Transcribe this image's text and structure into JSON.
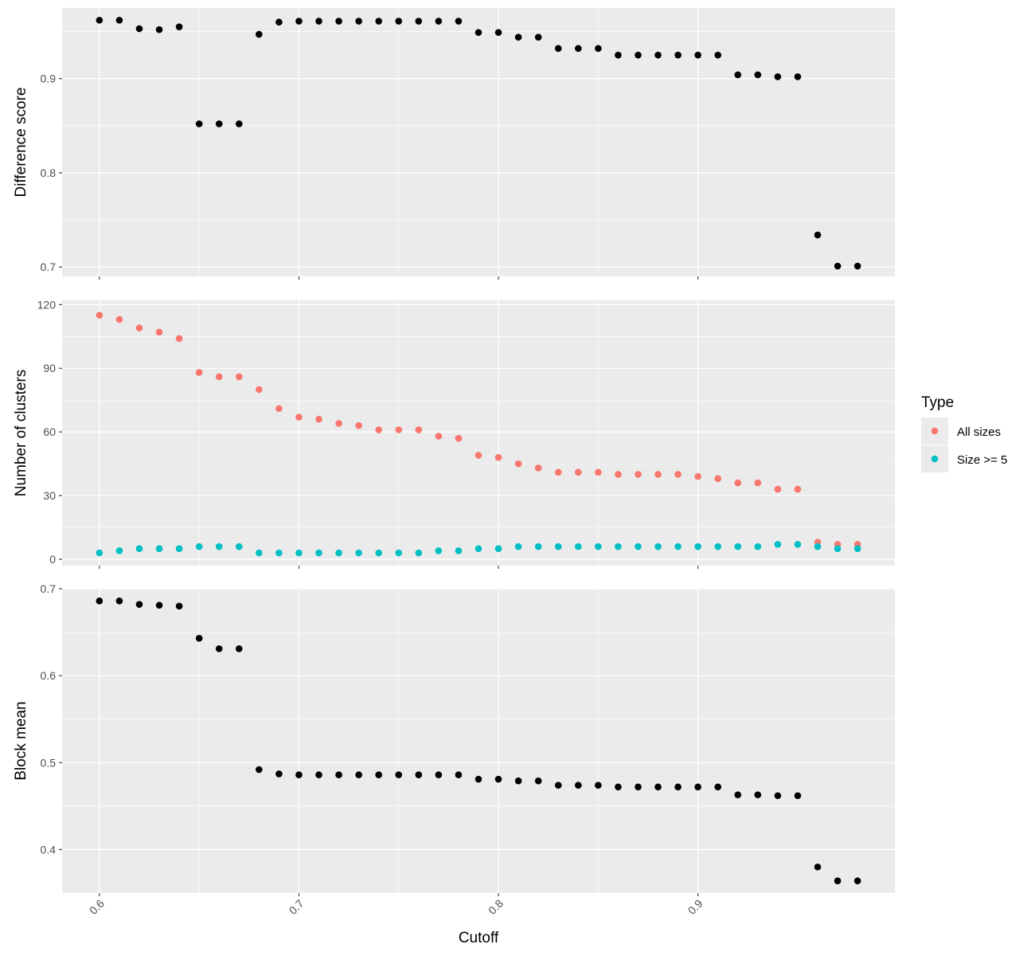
{
  "chart_data": [
    {
      "type": "scatter",
      "panel": "top",
      "ylabel": "Difference score",
      "xlabel": "",
      "ylim": [
        0.69,
        0.975
      ],
      "yticks": [
        0.7,
        0.8,
        0.9
      ],
      "ytick_labels": [
        "0.7",
        "0.8",
        "0.9"
      ],
      "grid": true,
      "series": [
        {
          "color": "#000000",
          "x": [
            0.6,
            0.61,
            0.62,
            0.63,
            0.64,
            0.65,
            0.66,
            0.67,
            0.68,
            0.69,
            0.7,
            0.71,
            0.72,
            0.73,
            0.74,
            0.75,
            0.76,
            0.77,
            0.78,
            0.79,
            0.8,
            0.81,
            0.82,
            0.83,
            0.84,
            0.85,
            0.86,
            0.87,
            0.88,
            0.89,
            0.9,
            0.91,
            0.92,
            0.93,
            0.94,
            0.95,
            0.96,
            0.97,
            0.98
          ],
          "y": [
            0.962,
            0.962,
            0.953,
            0.952,
            0.955,
            0.852,
            0.852,
            0.852,
            0.947,
            0.96,
            0.961,
            0.961,
            0.961,
            0.961,
            0.961,
            0.961,
            0.961,
            0.961,
            0.961,
            0.949,
            0.949,
            0.944,
            0.944,
            0.932,
            0.932,
            0.932,
            0.925,
            0.925,
            0.925,
            0.925,
            0.925,
            0.925,
            0.904,
            0.904,
            0.902,
            0.902,
            0.734,
            0.701,
            0.701
          ]
        }
      ]
    },
    {
      "type": "scatter",
      "panel": "middle",
      "ylabel": "Number of clusters",
      "xlabel": "",
      "ylim": [
        -3,
        122
      ],
      "yticks": [
        0,
        30,
        60,
        90,
        120
      ],
      "ytick_labels": [
        "0",
        "30",
        "60",
        "90",
        "120"
      ],
      "grid": true,
      "series": [
        {
          "name": "All sizes",
          "color": "#F8766D",
          "x": [
            0.6,
            0.61,
            0.62,
            0.63,
            0.64,
            0.65,
            0.66,
            0.67,
            0.68,
            0.69,
            0.7,
            0.71,
            0.72,
            0.73,
            0.74,
            0.75,
            0.76,
            0.77,
            0.78,
            0.79,
            0.8,
            0.81,
            0.82,
            0.83,
            0.84,
            0.85,
            0.86,
            0.87,
            0.88,
            0.89,
            0.9,
            0.91,
            0.92,
            0.93,
            0.94,
            0.95,
            0.96,
            0.97,
            0.98
          ],
          "y": [
            115,
            113,
            109,
            107,
            104,
            88,
            86,
            86,
            80,
            71,
            67,
            66,
            64,
            63,
            61,
            61,
            61,
            58,
            57,
            49,
            48,
            45,
            43,
            41,
            41,
            41,
            40,
            40,
            40,
            40,
            39,
            38,
            36,
            36,
            33,
            33,
            8,
            7,
            7
          ]
        },
        {
          "name": "Size >= 5",
          "color": "#00BFC4",
          "x": [
            0.6,
            0.61,
            0.62,
            0.63,
            0.64,
            0.65,
            0.66,
            0.67,
            0.68,
            0.69,
            0.7,
            0.71,
            0.72,
            0.73,
            0.74,
            0.75,
            0.76,
            0.77,
            0.78,
            0.79,
            0.8,
            0.81,
            0.82,
            0.83,
            0.84,
            0.85,
            0.86,
            0.87,
            0.88,
            0.89,
            0.9,
            0.91,
            0.92,
            0.93,
            0.94,
            0.95,
            0.96,
            0.97,
            0.98
          ],
          "y": [
            3,
            4,
            5,
            5,
            5,
            6,
            6,
            6,
            3,
            3,
            3,
            3,
            3,
            3,
            3,
            3,
            3,
            4,
            4,
            5,
            5,
            6,
            6,
            6,
            6,
            6,
            6,
            6,
            6,
            6,
            6,
            6,
            6,
            6,
            7,
            7,
            6,
            5,
            5
          ]
        }
      ]
    },
    {
      "type": "scatter",
      "panel": "bottom",
      "ylabel": "Block mean",
      "xlabel": "Cutoff",
      "ylim": [
        0.35,
        0.7
      ],
      "yticks": [
        0.4,
        0.5,
        0.6,
        0.7
      ],
      "ytick_labels": [
        "0.4",
        "0.5",
        "0.6",
        "0.7"
      ],
      "grid": true,
      "series": [
        {
          "color": "#000000",
          "x": [
            0.6,
            0.61,
            0.62,
            0.63,
            0.64,
            0.65,
            0.66,
            0.67,
            0.68,
            0.69,
            0.7,
            0.71,
            0.72,
            0.73,
            0.74,
            0.75,
            0.76,
            0.77,
            0.78,
            0.79,
            0.8,
            0.81,
            0.82,
            0.83,
            0.84,
            0.85,
            0.86,
            0.87,
            0.88,
            0.89,
            0.9,
            0.91,
            0.92,
            0.93,
            0.94,
            0.95,
            0.96,
            0.97,
            0.98
          ],
          "y": [
            0.686,
            0.686,
            0.682,
            0.681,
            0.68,
            0.643,
            0.631,
            0.631,
            0.492,
            0.487,
            0.486,
            0.486,
            0.486,
            0.486,
            0.486,
            0.486,
            0.486,
            0.486,
            0.486,
            0.481,
            0.481,
            0.479,
            0.479,
            0.474,
            0.474,
            0.474,
            0.472,
            0.472,
            0.472,
            0.472,
            0.472,
            0.472,
            0.463,
            0.463,
            0.462,
            0.462,
            0.38,
            0.364,
            0.364
          ]
        }
      ]
    }
  ],
  "x_axis": {
    "label": "Cutoff",
    "xlim": [
      0.5813,
      0.9987
    ],
    "ticks": [
      0.6,
      0.7,
      0.8,
      0.9
    ],
    "tick_labels": [
      "0.6",
      "0.7",
      "0.8",
      "0.9"
    ]
  },
  "legend": {
    "title": "Type",
    "placement": "right",
    "items": [
      {
        "label": "All sizes",
        "color": "#F8766D"
      },
      {
        "label": "Size >= 5",
        "color": "#00BFC4"
      }
    ]
  },
  "colors": {
    "panel_background": "#EBEBEB",
    "grid_line": "#FFFFFF",
    "tick_mark": "#333333"
  }
}
